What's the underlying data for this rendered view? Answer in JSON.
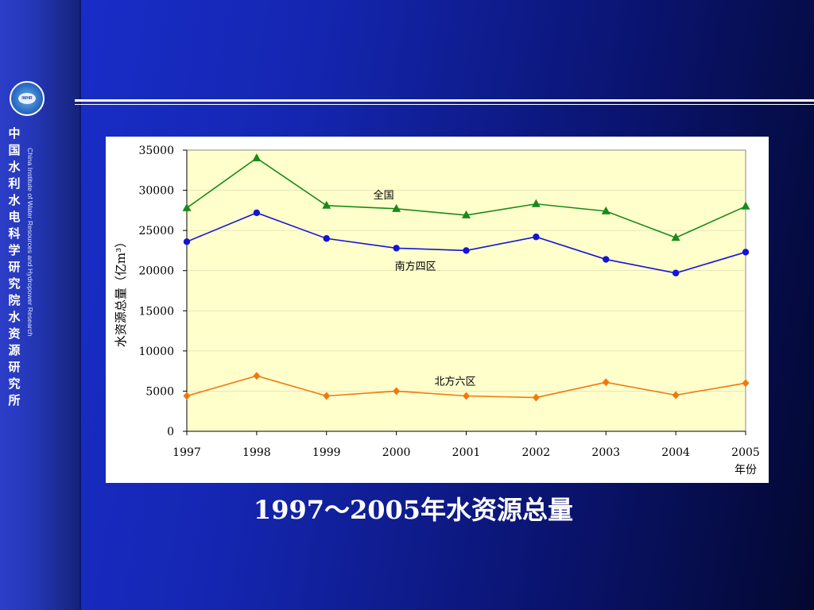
{
  "sidebar": {
    "org_name_cn": "中国水利水电科学研究院水资源研究所",
    "org_name_en": "China Institute of Water Resources and Hydropower Research",
    "logo_text": "IWHR"
  },
  "caption": "1997～2005年水资源总量",
  "colors": {
    "plot_background": "#ffffcc",
    "national": "#1a8a1a",
    "south": "#1414d4",
    "north": "#f07810"
  },
  "chart_data": {
    "type": "line",
    "title": "",
    "xlabel": "年份",
    "ylabel": "水资源总量（亿m³）",
    "x": [
      "1997",
      "1998",
      "1999",
      "2000",
      "2001",
      "2002",
      "2003",
      "2004",
      "2005"
    ],
    "ylim": [
      0,
      35000
    ],
    "yticks": [
      "0",
      "5000",
      "10000",
      "15000",
      "20000",
      "25000",
      "30000",
      "35000"
    ],
    "series": [
      {
        "name": "全国",
        "color": "#1a8a1a",
        "marker": "triangle",
        "values": [
          27800,
          34000,
          28100,
          27700,
          26900,
          28300,
          27400,
          24100,
          28000
        ]
      },
      {
        "name": "南方四区",
        "color": "#1414d4",
        "marker": "circle",
        "values": [
          23600,
          27200,
          24000,
          22800,
          22500,
          24200,
          21400,
          19700,
          22300
        ]
      },
      {
        "name": "北方六区",
        "color": "#f07810",
        "marker": "diamond",
        "values": [
          4400,
          6900,
          4400,
          5000,
          4400,
          4200,
          6100,
          4500,
          6000
        ]
      }
    ]
  }
}
